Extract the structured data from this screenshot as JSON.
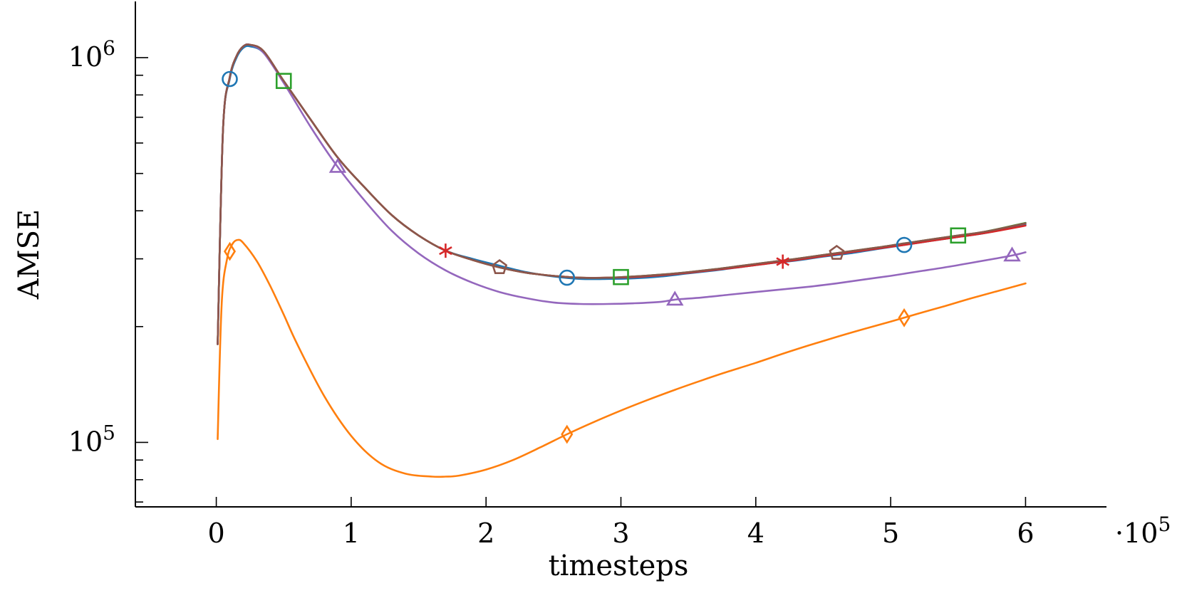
{
  "chart_data": {
    "type": "line",
    "xlabel": "timesteps",
    "ylabel": "AMSE",
    "x_multiplier": "·10",
    "x_multiplier_exp": "5",
    "x_scale": "linear",
    "y_scale": "log",
    "xlim": [
      -0.6,
      6.6
    ],
    "ylim": [
      68000,
      1400000
    ],
    "x_ticks": [
      0,
      1,
      2,
      3,
      4,
      5,
      6
    ],
    "x_tick_labels": [
      "0",
      "1",
      "2",
      "3",
      "4",
      "5",
      "6"
    ],
    "y_major_ticks": [
      {
        "value": 100000,
        "base": "10",
        "exp": "5"
      },
      {
        "value": 1000000,
        "base": "10",
        "exp": "6"
      }
    ],
    "y_minor_ticks": [
      70000,
      80000,
      90000,
      200000,
      300000,
      400000,
      500000,
      600000,
      700000,
      800000,
      900000
    ],
    "grid": false,
    "legend": "none",
    "series": [
      {
        "color": "#1f77b4",
        "marker": "circle",
        "x": [
          0.01,
          0.05,
          0.1,
          0.15,
          0.2,
          0.25,
          0.35,
          0.5,
          0.7,
          0.9,
          1.1,
          1.3,
          1.5,
          1.7,
          1.9,
          2.1,
          2.3,
          2.5,
          2.7,
          2.9,
          3.1,
          3.3,
          3.5,
          3.7,
          3.9,
          4.1,
          4.3,
          4.5,
          4.7,
          4.9,
          5.1,
          5.3,
          5.5,
          5.7,
          6.0
        ],
        "y": [
          180000,
          650000,
          880000,
          1000000,
          1060000,
          1070000,
          1030000,
          870000,
          690000,
          550000,
          460000,
          390000,
          345000,
          315000,
          300000,
          288000,
          277000,
          270000,
          266000,
          266000,
          267000,
          270000,
          275000,
          280000,
          286000,
          292000,
          297000,
          304000,
          310000,
          318000,
          326000,
          334000,
          342000,
          350000,
          368000
        ],
        "markers_x": [
          0.1,
          2.6,
          5.1
        ]
      },
      {
        "color": "#ff7f0e",
        "marker": "diamond",
        "x": [
          0.01,
          0.04,
          0.08,
          0.12,
          0.16,
          0.2,
          0.3,
          0.4,
          0.5,
          0.6,
          0.8,
          1.0,
          1.2,
          1.4,
          1.6,
          1.7,
          1.8,
          2.0,
          2.2,
          2.4,
          2.6,
          2.8,
          3.0,
          3.2,
          3.4,
          3.6,
          3.8,
          4.0,
          4.2,
          4.4,
          4.6,
          4.8,
          5.0,
          5.2,
          5.4,
          5.6,
          6.0
        ],
        "y": [
          102000,
          230000,
          300000,
          328000,
          336000,
          330000,
          296000,
          255000,
          215000,
          180000,
          132000,
          104000,
          89000,
          83000,
          81500,
          81500,
          82000,
          85000,
          90000,
          97000,
          105000,
          113000,
          121000,
          129000,
          137000,
          145000,
          153000,
          161000,
          170000,
          179000,
          188000,
          197000,
          206000,
          216000,
          226000,
          237000,
          259000
        ],
        "markers_x": [
          0.1,
          2.6,
          5.1
        ]
      },
      {
        "color": "#2ca02c",
        "marker": "square",
        "x": [
          0.01,
          0.05,
          0.1,
          0.15,
          0.2,
          0.25,
          0.35,
          0.5,
          0.7,
          0.9,
          1.1,
          1.3,
          1.5,
          1.7,
          1.9,
          2.1,
          2.3,
          2.5,
          2.7,
          2.9,
          3.1,
          3.3,
          3.5,
          3.7,
          3.9,
          4.1,
          4.3,
          4.5,
          4.7,
          4.9,
          5.1,
          5.3,
          5.5,
          5.7,
          6.0
        ],
        "y": [
          180000,
          650000,
          890000,
          1010000,
          1070000,
          1080000,
          1040000,
          870000,
          690000,
          550000,
          460000,
          390000,
          345000,
          315000,
          298000,
          285000,
          276000,
          271000,
          268000,
          268000,
          270000,
          273000,
          277000,
          282000,
          288000,
          294000,
          300000,
          307000,
          314000,
          321000,
          329000,
          337000,
          345000,
          353000,
          372000
        ],
        "markers_x": [
          0.5,
          3.0,
          5.5
        ]
      },
      {
        "color": "#d62728",
        "marker": "star",
        "x": [
          0.01,
          0.05,
          0.1,
          0.15,
          0.2,
          0.25,
          0.35,
          0.5,
          0.7,
          0.9,
          1.1,
          1.3,
          1.5,
          1.7,
          1.9,
          2.1,
          2.3,
          2.5,
          2.7,
          2.9,
          3.1,
          3.3,
          3.5,
          3.7,
          3.9,
          4.1,
          4.3,
          4.5,
          4.7,
          4.9,
          5.1,
          5.3,
          5.5,
          5.7,
          6.0
        ],
        "y": [
          180000,
          650000,
          890000,
          1010000,
          1070000,
          1080000,
          1040000,
          870000,
          690000,
          550000,
          460000,
          390000,
          345000,
          315000,
          298000,
          285000,
          276000,
          271000,
          268000,
          268000,
          269000,
          272000,
          276000,
          281000,
          286000,
          292000,
          298000,
          305000,
          312000,
          319000,
          326000,
          334000,
          342000,
          350000,
          366000
        ],
        "markers_x": [
          1.7,
          4.2
        ]
      },
      {
        "color": "#9467bd",
        "marker": "triangle",
        "x": [
          0.01,
          0.05,
          0.1,
          0.15,
          0.2,
          0.25,
          0.35,
          0.5,
          0.7,
          0.9,
          1.1,
          1.3,
          1.5,
          1.7,
          1.9,
          2.1,
          2.3,
          2.5,
          2.7,
          2.9,
          3.1,
          3.3,
          3.4,
          3.6,
          3.8,
          4.0,
          4.2,
          4.4,
          4.6,
          4.8,
          5.0,
          5.2,
          5.4,
          5.6,
          5.9,
          6.0
        ],
        "y": [
          180000,
          650000,
          890000,
          1010000,
          1070000,
          1080000,
          1030000,
          860000,
          660000,
          520000,
          425000,
          355000,
          310000,
          280000,
          260000,
          246000,
          237000,
          231000,
          229000,
          229000,
          230000,
          232000,
          235000,
          238000,
          242000,
          246000,
          250000,
          254000,
          259000,
          265000,
          271000,
          278000,
          285000,
          293000,
          306000,
          312000
        ],
        "markers_x": [
          0.9,
          3.4,
          5.9
        ]
      },
      {
        "color": "#8c564b",
        "marker": "pentagon",
        "x": [
          0.01,
          0.05,
          0.1,
          0.15,
          0.2,
          0.25,
          0.35,
          0.5,
          0.7,
          0.9,
          1.1,
          1.3,
          1.5,
          1.7,
          1.9,
          2.1,
          2.3,
          2.5,
          2.7,
          2.9,
          3.1,
          3.3,
          3.5,
          3.7,
          3.9,
          4.1,
          4.3,
          4.5,
          4.7,
          4.9,
          5.1,
          5.3,
          5.5,
          5.7,
          6.0
        ],
        "y": [
          180000,
          650000,
          890000,
          1010000,
          1070000,
          1080000,
          1040000,
          870000,
          690000,
          550000,
          460000,
          390000,
          345000,
          315000,
          298000,
          285000,
          276000,
          271000,
          268000,
          268000,
          270000,
          273000,
          277000,
          282000,
          288000,
          294000,
          300000,
          307000,
          314000,
          321000,
          329000,
          337000,
          345000,
          353000,
          371000
        ],
        "markers_x": [
          2.1,
          4.6
        ]
      }
    ]
  }
}
